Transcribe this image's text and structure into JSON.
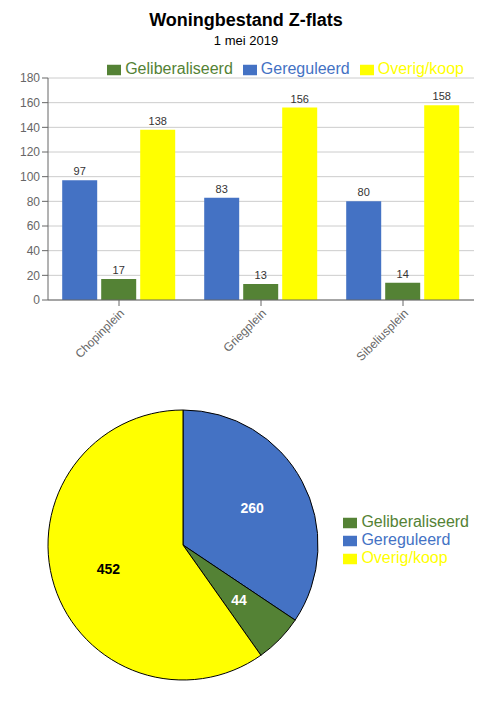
{
  "chart_data": [
    {
      "type": "bar",
      "title": "Woningbestand Z-flats",
      "subtitle": "1 mei 2019",
      "categories": [
        "Chopinplein",
        "Griegplein",
        "Sibeliusplein"
      ],
      "series": [
        {
          "name": "Gereguleerd",
          "color": "#4472C4",
          "values": [
            97,
            83,
            80
          ]
        },
        {
          "name": "Geliberaliseerd",
          "color": "#548235",
          "values": [
            17,
            13,
            14
          ]
        },
        {
          "name": "Overig/koop",
          "color": "#FFFF00",
          "values": [
            138,
            156,
            158
          ]
        }
      ],
      "ylim": [
        0,
        180
      ],
      "yticks": [
        0,
        20,
        40,
        60,
        80,
        100,
        120,
        140,
        160,
        180
      ],
      "grid": true,
      "legend": "upper right",
      "data_labels": true
    },
    {
      "type": "pie",
      "categories": [
        "Gereguleerd",
        "Geliberaliseerd",
        "Overig/koop"
      ],
      "values": [
        260,
        44,
        452
      ],
      "colors": [
        "#4472C4",
        "#548235",
        "#FFFF00"
      ],
      "legend": "right",
      "data_labels": true
    }
  ]
}
